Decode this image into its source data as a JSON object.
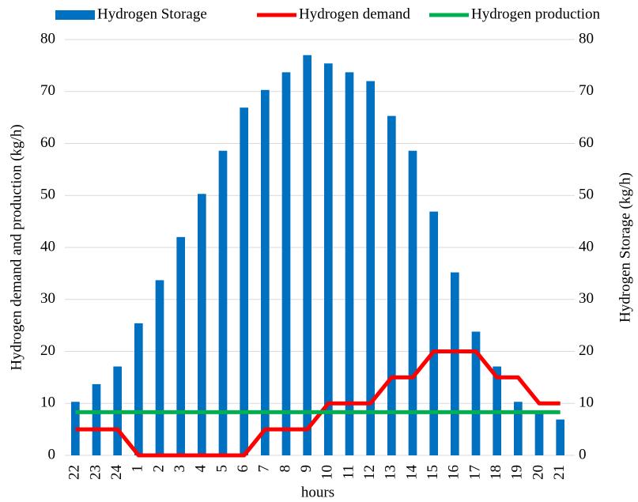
{
  "chart_data": {
    "type": "bar-line",
    "categories": [
      "22",
      "23",
      "24",
      "1",
      "2",
      "3",
      "4",
      "5",
      "6",
      "7",
      "8",
      "9",
      "10",
      "11",
      "12",
      "13",
      "14",
      "15",
      "16",
      "17",
      "18",
      "19",
      "20",
      "21"
    ],
    "series": [
      {
        "name": "Hydrogen Storage",
        "color": "#0070c0",
        "type": "bar",
        "axis": "y2",
        "values": [
          10.3,
          13.7,
          17.1,
          25.4,
          33.7,
          42.0,
          50.3,
          58.6,
          66.9,
          70.3,
          73.7,
          77.0,
          75.4,
          73.7,
          72.0,
          65.3,
          58.6,
          46.9,
          35.2,
          23.8,
          17.1,
          10.3,
          8.6,
          6.9
        ]
      },
      {
        "name": "Hydrogen demand",
        "color": "#ff0000",
        "type": "line",
        "values": [
          5,
          5,
          5,
          0,
          0,
          0,
          0,
          0,
          0,
          5,
          5,
          5,
          10,
          10,
          10,
          15,
          15,
          20,
          20,
          20,
          15,
          15,
          10,
          10
        ]
      },
      {
        "name": "Hydrogen production",
        "color": "#00b050",
        "type": "line",
        "values": [
          8.3,
          8.3,
          8.3,
          8.3,
          8.3,
          8.3,
          8.3,
          8.3,
          8.3,
          8.3,
          8.3,
          8.3,
          8.3,
          8.3,
          8.3,
          8.3,
          8.3,
          8.3,
          8.3,
          8.3,
          8.3,
          8.3,
          8.3,
          8.3
        ]
      }
    ],
    "ylabel": "Hydrogen demand and production (kg/h)",
    "y2label": "Hydrogen Storage (kg/h)",
    "xlabel": "hours",
    "ylim": [
      0,
      80
    ],
    "yticks": [
      0,
      10,
      20,
      30,
      40,
      50,
      60,
      70,
      80
    ],
    "y2lim": [
      0,
      80
    ],
    "y2ticks": [
      0,
      10,
      20,
      30,
      40,
      50,
      60,
      70,
      80
    ],
    "grid": true,
    "legend": "top"
  }
}
